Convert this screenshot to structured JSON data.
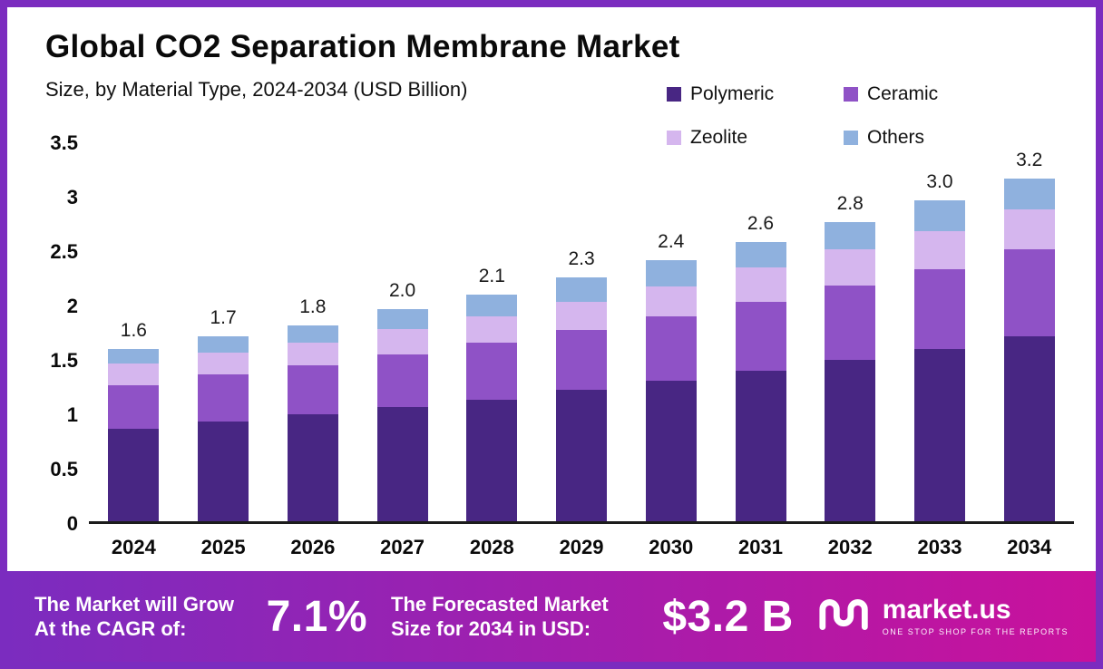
{
  "header": {
    "title": "Global CO2 Separation Membrane Market",
    "subtitle": "Size, by Material Type, 2024-2034 (USD Billion)"
  },
  "legend": {
    "items": [
      {
        "label": "Polymeric",
        "color": "#482683"
      },
      {
        "label": "Ceramic",
        "color": "#8f52c6"
      },
      {
        "label": "Zeolite",
        "color": "#d5b6ee"
      },
      {
        "label": "Others",
        "color": "#8fb1de"
      }
    ]
  },
  "chart_data": {
    "type": "bar",
    "stacked": true,
    "title": "Global CO2 Separation Membrane Market Size, by Material Type, 2024-2034 (USD Billion)",
    "categories": [
      "2024",
      "2025",
      "2026",
      "2027",
      "2028",
      "2029",
      "2030",
      "2031",
      "2032",
      "2033",
      "2034"
    ],
    "series": [
      {
        "name": "Polymeric",
        "color": "#482683",
        "values": [
          0.85,
          0.92,
          0.98,
          1.05,
          1.12,
          1.21,
          1.29,
          1.38,
          1.48,
          1.58,
          1.7
        ]
      },
      {
        "name": "Ceramic",
        "color": "#8f52c6",
        "values": [
          0.4,
          0.43,
          0.45,
          0.48,
          0.52,
          0.55,
          0.59,
          0.64,
          0.69,
          0.74,
          0.8
        ]
      },
      {
        "name": "Zeolite",
        "color": "#d5b6ee",
        "values": [
          0.2,
          0.2,
          0.21,
          0.24,
          0.24,
          0.26,
          0.28,
          0.31,
          0.33,
          0.35,
          0.37
        ]
      },
      {
        "name": "Others",
        "color": "#8fb1de",
        "values": [
          0.13,
          0.15,
          0.16,
          0.18,
          0.2,
          0.22,
          0.24,
          0.24,
          0.25,
          0.28,
          0.28
        ]
      }
    ],
    "totals": [
      "1.6",
      "1.7",
      "1.8",
      "2.0",
      "2.1",
      "2.3",
      "2.4",
      "2.6",
      "2.8",
      "3.0",
      "3.2"
    ],
    "xlabel": "",
    "ylabel": "",
    "ylim": [
      0,
      3.5
    ],
    "yticks": [
      0,
      0.5,
      1,
      1.5,
      2,
      2.5,
      3,
      3.5
    ],
    "grid": false,
    "legend_position": "top-right"
  },
  "banner": {
    "cagr_label": "The Market will Grow At the CAGR of:",
    "cagr_value": "7.1%",
    "forecast_label": "The Forecasted Market Size for 2034 in USD:",
    "forecast_value": "$3.2 B",
    "brand": "market.us",
    "tagline": "ONE STOP SHOP FOR THE REPORTS"
  },
  "colors": {
    "frame": "#7B2CBF",
    "banner_gradient_start": "#7b2cbf",
    "banner_gradient_end": "#c9119c"
  }
}
